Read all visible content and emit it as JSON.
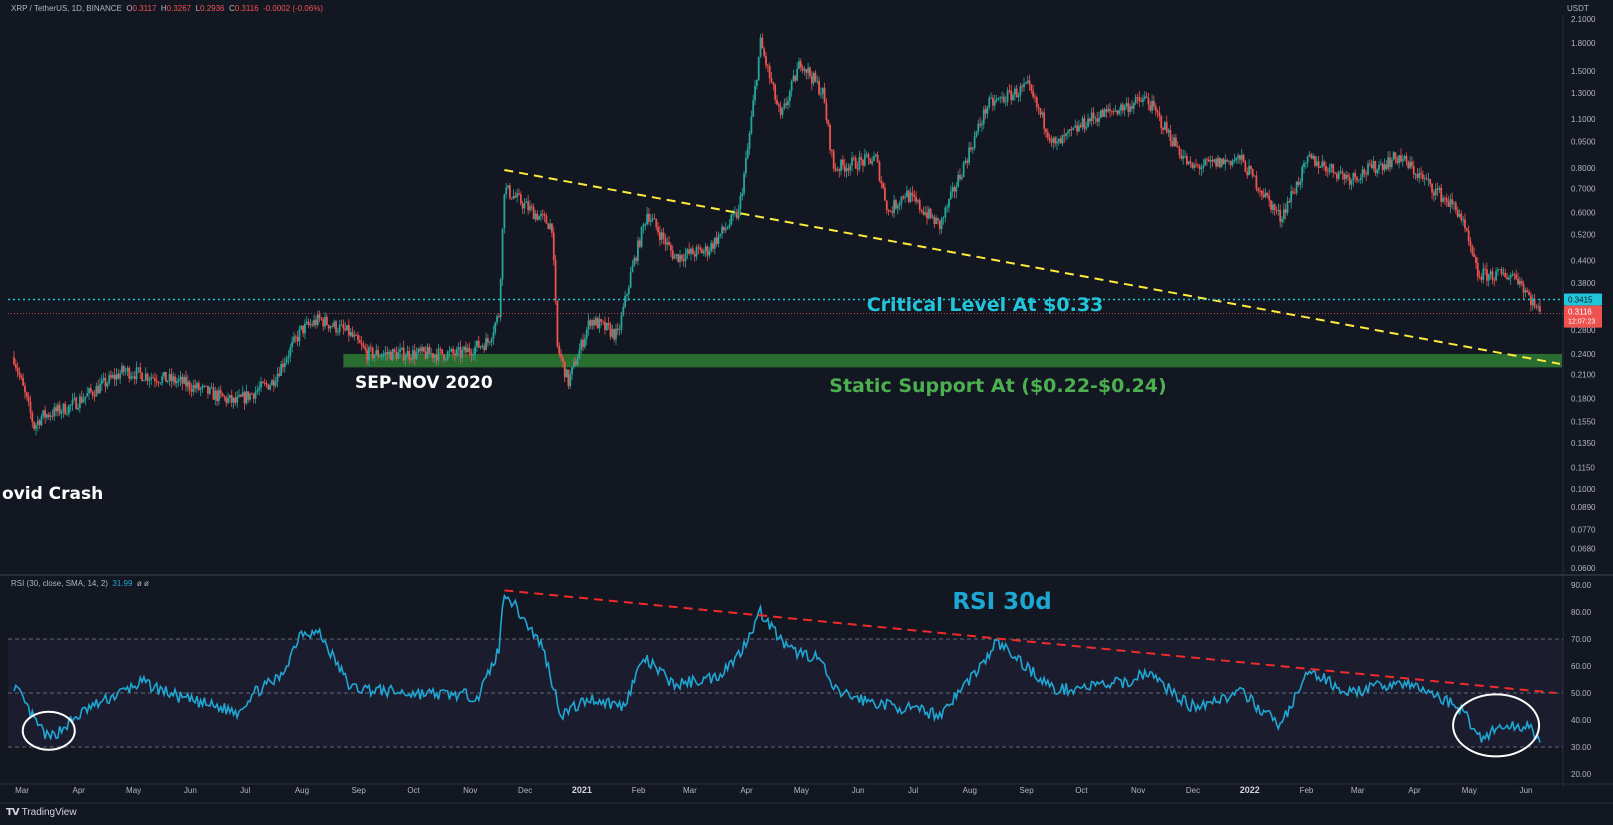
{
  "header": {
    "symbol_line": "XRP / TetherUS, 1D, BINANCE",
    "o_label": "O",
    "o_value": "0.3117",
    "h_label": "H",
    "h_value": "0.3267",
    "l_label": "L",
    "l_value": "0.2936",
    "c_label": "C",
    "c_value": "0.3116",
    "change": "-0.0002 (-0.06%)",
    "currency": "USDT"
  },
  "rsi_header": {
    "label": "RSI (30, close, SMA, 14, 2)",
    "value": "31.99",
    "extra": "ø ø"
  },
  "footer": {
    "brand": "TradingView"
  },
  "colors": {
    "background": "#131722",
    "up": "#26a69a",
    "down": "#ef5350",
    "rsi_line": "#1fa7d3",
    "critical": "#22c6da",
    "support_zone": "#2e7d32",
    "support_text": "#4caf50",
    "trendline_price": "#ffeb3b",
    "trendline_rsi": "#ef2b2b"
  },
  "annotations": {
    "critical_level": "Critical Level At $0.33",
    "static_support": "Static Support At ($0.22-$0.24)",
    "sep_nov": "SEP-NOV 2020",
    "covid": "ovid Crash",
    "rsi_title": "RSI 30d"
  },
  "price_tags": {
    "critical": "0.3415",
    "last": "0.3116",
    "countdown": "12:07:23"
  },
  "chart_data": [
    {
      "type": "candlestick",
      "title": "XRP / TetherUS, 1D, BINANCE",
      "y_scale": "log",
      "ylim": [
        0.06,
        2.1
      ],
      "y_ticks": [
        "2.1000",
        "1.8000",
        "1.5000",
        "1.3000",
        "1.1000",
        "0.9500",
        "0.8000",
        "0.7000",
        "0.6000",
        "0.5200",
        "0.4400",
        "0.3800",
        "0.3415",
        "0.2800",
        "0.2400",
        "0.2100",
        "0.1800",
        "0.1550",
        "0.1350",
        "0.1150",
        "0.1000",
        "0.0890",
        "0.0770",
        "0.0680",
        "0.0600"
      ],
      "x_ticks": [
        "Mar",
        "Apr",
        "May",
        "Jun",
        "Jul",
        "Aug",
        "Sep",
        "Oct",
        "Nov",
        "Dec",
        "2021",
        "Feb",
        "Mar",
        "Apr",
        "May",
        "Jun",
        "Jul",
        "Aug",
        "Sep",
        "Oct",
        "Nov",
        "Dec",
        "2022",
        "Feb",
        "Mar",
        "Apr",
        "May",
        "Jun"
      ],
      "close_path": [
        [
          "2020-03-01",
          0.235
        ],
        [
          "2020-03-12",
          0.15
        ],
        [
          "2020-03-16",
          0.16
        ],
        [
          "2020-03-31",
          0.17
        ],
        [
          "2020-04-30",
          0.215
        ],
        [
          "2020-05-31",
          0.2
        ],
        [
          "2020-06-30",
          0.175
        ],
        [
          "2020-07-20",
          0.2
        ],
        [
          "2020-08-05",
          0.28
        ],
        [
          "2020-08-15",
          0.3
        ],
        [
          "2020-08-31",
          0.275
        ],
        [
          "2020-09-10",
          0.24
        ],
        [
          "2020-09-30",
          0.24
        ],
        [
          "2020-10-31",
          0.24
        ],
        [
          "2020-11-15",
          0.26
        ],
        [
          "2020-11-21",
          0.31
        ],
        [
          "2020-11-24",
          0.7
        ],
        [
          "2020-12-10",
          0.6
        ],
        [
          "2020-12-20",
          0.55
        ],
        [
          "2020-12-23",
          0.25
        ],
        [
          "2020-12-29",
          0.2
        ],
        [
          "2021-01-10",
          0.3
        ],
        [
          "2021-01-25",
          0.27
        ],
        [
          "2021-02-01",
          0.4
        ],
        [
          "2021-02-10",
          0.6
        ],
        [
          "2021-02-25",
          0.45
        ],
        [
          "2021-03-15",
          0.47
        ],
        [
          "2021-04-01",
          0.6
        ],
        [
          "2021-04-06",
          0.9
        ],
        [
          "2021-04-13",
          1.8
        ],
        [
          "2021-04-24",
          1.1
        ],
        [
          "2021-05-05",
          1.6
        ],
        [
          "2021-05-17",
          1.3
        ],
        [
          "2021-05-23",
          0.8
        ],
        [
          "2021-06-15",
          0.85
        ],
        [
          "2021-06-22",
          0.6
        ],
        [
          "2021-07-01",
          0.68
        ],
        [
          "2021-07-20",
          0.55
        ],
        [
          "2021-08-15",
          1.2
        ],
        [
          "2021-09-06",
          1.35
        ],
        [
          "2021-09-21",
          0.92
        ],
        [
          "2021-10-10",
          1.1
        ],
        [
          "2021-11-10",
          1.25
        ],
        [
          "2021-12-04",
          0.8
        ],
        [
          "2021-12-31",
          0.85
        ],
        [
          "2022-01-22",
          0.58
        ],
        [
          "2022-02-07",
          0.85
        ],
        [
          "2022-03-01",
          0.75
        ],
        [
          "2022-03-28",
          0.86
        ],
        [
          "2022-04-30",
          0.6
        ],
        [
          "2022-05-10",
          0.4
        ],
        [
          "2022-05-31",
          0.4
        ],
        [
          "2022-06-13",
          0.311
        ]
      ]
    },
    {
      "type": "line",
      "title": "RSI (30, close, SMA, 14, 2)",
      "ylim": [
        20,
        90
      ],
      "y_ticks": [
        20,
        30,
        40,
        50,
        60,
        70,
        80,
        90
      ],
      "bands": [
        30,
        50,
        70
      ],
      "series": [
        {
          "values": [
            [
              "2020-03-01",
              53
            ],
            [
              "2020-03-12",
              40
            ],
            [
              "2020-03-20",
              33
            ],
            [
              "2020-04-10",
              44
            ],
            [
              "2020-05-01",
              51
            ],
            [
              "2020-05-10",
              54
            ],
            [
              "2020-06-01",
              48
            ],
            [
              "2020-07-01",
              43
            ],
            [
              "2020-07-10",
              50
            ],
            [
              "2020-07-25",
              56
            ],
            [
              "2020-08-05",
              73
            ],
            [
              "2020-08-15",
              72
            ],
            [
              "2020-09-01",
              52
            ],
            [
              "2020-10-01",
              50
            ],
            [
              "2020-11-10",
              49
            ],
            [
              "2020-11-21",
              66
            ],
            [
              "2020-11-24",
              88
            ],
            [
              "2020-12-15",
              67
            ],
            [
              "2020-12-25",
              42
            ],
            [
              "2021-01-10",
              48
            ],
            [
              "2021-01-28",
              45
            ],
            [
              "2021-02-08",
              63
            ],
            [
              "2021-02-25",
              53
            ],
            [
              "2021-03-20",
              56
            ],
            [
              "2021-04-01",
              64
            ],
            [
              "2021-04-13",
              80
            ],
            [
              "2021-04-28",
              66
            ],
            [
              "2021-05-15",
              63
            ],
            [
              "2021-05-23",
              51
            ],
            [
              "2021-06-10",
              47
            ],
            [
              "2021-07-20",
              42
            ],
            [
              "2021-08-15",
              63
            ],
            [
              "2021-08-20",
              69
            ],
            [
              "2021-09-21",
              51
            ],
            [
              "2021-10-31",
              54
            ],
            [
              "2021-11-10",
              58
            ],
            [
              "2021-12-04",
              45
            ],
            [
              "2022-01-01",
              50
            ],
            [
              "2022-01-22",
              38
            ],
            [
              "2022-02-07",
              58
            ],
            [
              "2022-03-01",
              50
            ],
            [
              "2022-03-28",
              54
            ],
            [
              "2022-04-15",
              50
            ],
            [
              "2022-05-01",
              44
            ],
            [
              "2022-05-12",
              33
            ],
            [
              "2022-05-20",
              37
            ],
            [
              "2022-06-08",
              38
            ],
            [
              "2022-06-13",
              32
            ]
          ]
        }
      ]
    }
  ]
}
